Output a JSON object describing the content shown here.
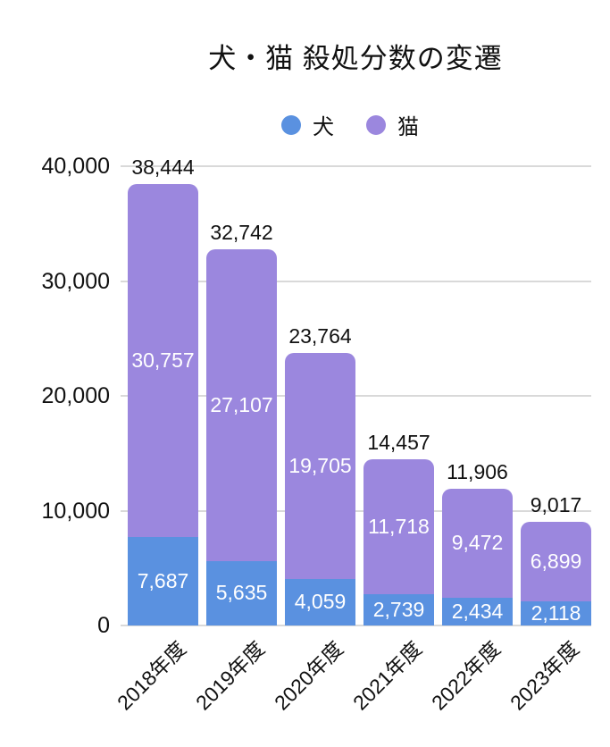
{
  "title": "犬・猫 殺処分数の変遷",
  "legend": [
    {
      "label": "犬",
      "color": "#5a91e0"
    },
    {
      "label": "猫",
      "color": "#9b87de"
    }
  ],
  "chart_data": {
    "type": "bar",
    "stacked": true,
    "title": "犬・猫 殺処分数の変遷",
    "categories": [
      "2018年度",
      "2019年度",
      "2020年度",
      "2021年度",
      "2022年度",
      "2023年度"
    ],
    "series": [
      {
        "name": "犬",
        "color": "#5a91e0",
        "values": [
          7687,
          5635,
          4059,
          2739,
          2434,
          2118
        ],
        "labels": [
          "7,687",
          "5,635",
          "4,059",
          "2,739",
          "2,434",
          "2,118"
        ]
      },
      {
        "name": "猫",
        "color": "#9b87de",
        "values": [
          30757,
          27107,
          19705,
          11718,
          9472,
          6899
        ],
        "labels": [
          "30,757",
          "27,107",
          "19,705",
          "11,718",
          "9,472",
          "6,899"
        ]
      }
    ],
    "totals": [
      38444,
      32742,
      23764,
      14457,
      11906,
      9017
    ],
    "total_labels": [
      "38,444",
      "32,742",
      "23,764",
      "14,457",
      "11,906",
      "9,017"
    ],
    "y_ticks": [
      "40,000",
      "30,000",
      "20,000",
      "10,000",
      "0"
    ],
    "ylim": [
      0,
      40000
    ],
    "grid": true,
    "gridline_color": "#d9d9d9",
    "legend_position": "top",
    "value_label_color": "#ffffff",
    "text_color": "#111111"
  }
}
